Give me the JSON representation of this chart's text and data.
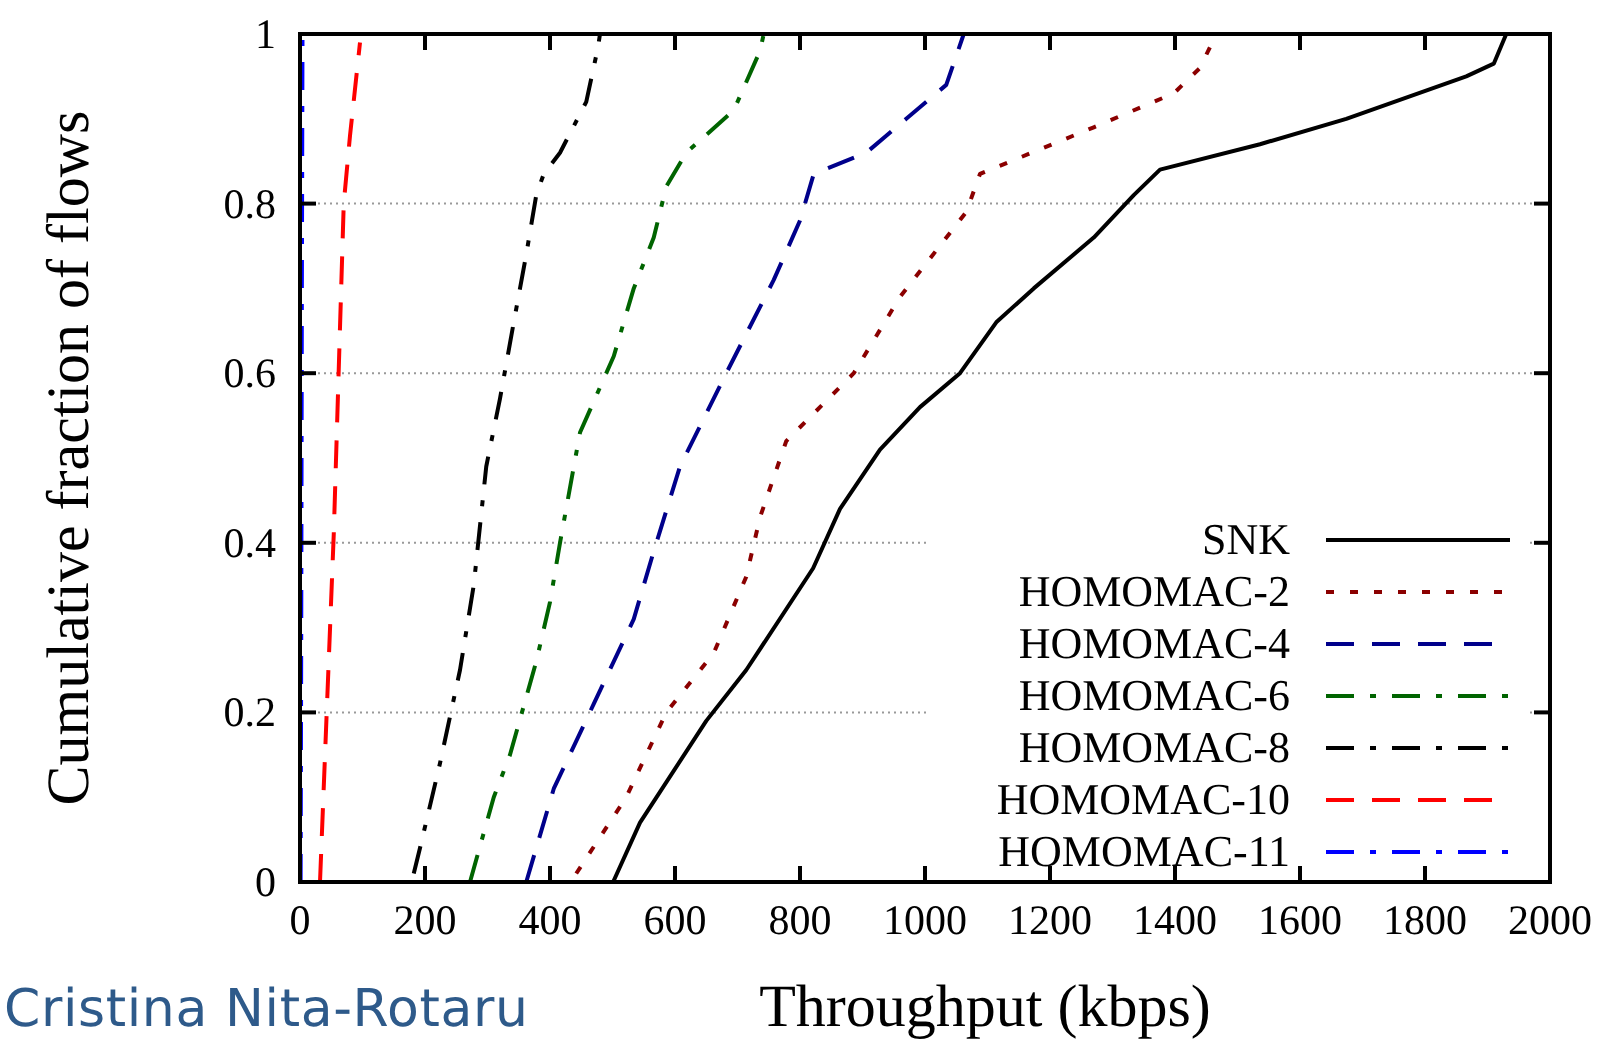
{
  "chart_data": {
    "type": "line",
    "xlabel": "Throughput (kbps)",
    "ylabel": "Cumulative fraction of flows",
    "xlim": [
      0,
      2000
    ],
    "xticks": [
      0,
      200,
      400,
      600,
      800,
      1000,
      1200,
      1400,
      1600,
      1800,
      2000
    ],
    "ylim": [
      0,
      1
    ],
    "yticks": [
      0,
      0.2,
      0.4,
      0.6,
      0.8,
      1
    ],
    "grid": "y",
    "legend": "bottom right",
    "annotations": [
      "Cristina Nita-Rotaru"
    ],
    "series": [
      {
        "name": "SNK",
        "color": "#000000",
        "line_style": "solid",
        "x": [
          501,
          544,
          650,
          714,
          821,
          864,
          928,
          992,
          1056,
          1114,
          1174,
          1270,
          1334,
          1376,
          1536,
          1674,
          1866,
          1910,
          1930
        ],
        "values": [
          0,
          0.07,
          0.19,
          0.25,
          0.37,
          0.44,
          0.51,
          0.56,
          0.6,
          0.66,
          0.7,
          0.76,
          0.81,
          0.84,
          0.87,
          0.9,
          0.95,
          0.965,
          1
        ]
      },
      {
        "name": "HOMOMAC-2",
        "color": "#8b0000",
        "line_style": "dotted",
        "x": [
          442,
          522,
          586,
          662,
          714,
          736,
          778,
          886,
          960,
          1066,
          1088,
          1270,
          1398,
          1440,
          1466
        ],
        "values": [
          0.01,
          0.1,
          0.2,
          0.27,
          0.36,
          0.43,
          0.52,
          0.6,
          0.69,
          0.79,
          0.835,
          0.89,
          0.93,
          0.96,
          1
        ]
      },
      {
        "name": "HOMOMAC-4",
        "color": "#00008b",
        "line_style": "dashed",
        "x": [
          362,
          406,
          470,
          534,
          566,
          608,
          682,
          758,
          800,
          822,
          906,
          970,
          1034,
          1062
        ],
        "values": [
          0,
          0.11,
          0.21,
          0.31,
          0.39,
          0.49,
          0.6,
          0.71,
          0.78,
          0.835,
          0.86,
          0.9,
          0.94,
          1
        ]
      },
      {
        "name": "HOMOMAC-6",
        "color": "#006400",
        "line_style": "dashdot",
        "x": [
          272,
          310,
          336,
          378,
          400,
          416,
          448,
          502,
          534,
          566,
          586,
          618,
          694,
          736,
          742
        ],
        "values": [
          0,
          0.1,
          0.15,
          0.26,
          0.33,
          0.4,
          0.53,
          0.62,
          0.7,
          0.76,
          0.82,
          0.86,
          0.91,
          0.98,
          1
        ]
      },
      {
        "name": "HOMOMAC-8",
        "color": "#000000",
        "line_style": "dashdot",
        "x": [
          182,
          192,
          224,
          256,
          278,
          298,
          320,
          342,
          362,
          378,
          390,
          416,
          458,
          477,
          480
        ],
        "values": [
          0.01,
          0.04,
          0.14,
          0.25,
          0.35,
          0.49,
          0.57,
          0.66,
          0.74,
          0.81,
          0.835,
          0.86,
          0.92,
          0.985,
          1
        ]
      },
      {
        "name": "HOMOMAC-10",
        "color": "#ff0000",
        "line_style": "dashed",
        "x": [
          32,
          54,
          70,
          80,
          96
        ],
        "values": [
          0,
          0.41,
          0.8,
          0.88,
          0.99
        ]
      },
      {
        "name": "HOMOMAC-11",
        "color": "#0000ff",
        "line_style": "dashdot",
        "x": [
          1,
          2,
          3,
          4
        ],
        "values": [
          0,
          0.3,
          0.7,
          1
        ]
      }
    ]
  }
}
